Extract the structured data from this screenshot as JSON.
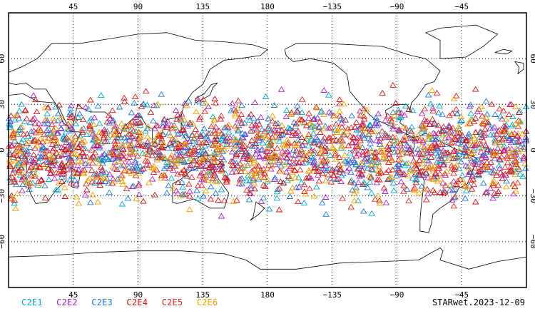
{
  "map": {
    "x_ticks": [
      {
        "lon": 45,
        "label": "45"
      },
      {
        "lon": 90,
        "label": "90"
      },
      {
        "lon": 135,
        "label": "135"
      },
      {
        "lon": 180,
        "label": "180"
      },
      {
        "lon": 225,
        "label": "−135"
      },
      {
        "lon": 270,
        "label": "−90"
      },
      {
        "lon": 315,
        "label": "−45"
      }
    ],
    "y_ticks": [
      {
        "lat": 60,
        "label": "60"
      },
      {
        "lat": 30,
        "label": "30"
      },
      {
        "lat": 0,
        "label": "0"
      },
      {
        "lat": -30,
        "label": "−30"
      },
      {
        "lat": -60,
        "label": "−60"
      }
    ],
    "lon_range": [
      0,
      360
    ],
    "lat_range": [
      -90,
      90
    ],
    "grid": "dotted",
    "marker": "triangle",
    "observation_lat_band": [
      -45,
      45
    ]
  },
  "legend": [
    {
      "label": "C2E1",
      "color": "#00aacc"
    },
    {
      "label": "C2E2",
      "color": "#aa22cc"
    },
    {
      "label": "C2E3",
      "color": "#1f77d8"
    },
    {
      "label": "C2E4",
      "color": "#cc1111"
    },
    {
      "label": "C2E5",
      "color": "#dd2222"
    },
    {
      "label": "C2E6",
      "color": "#f0a000"
    }
  ],
  "footer": {
    "id": "STARwet.2023-12-09"
  }
}
